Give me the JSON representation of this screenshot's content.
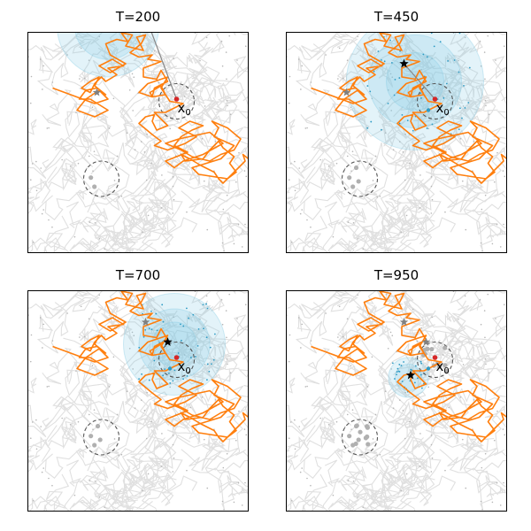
{
  "panels": [
    {
      "title": "T=200",
      "x0_label": "x",
      "x0_sub": "0"
    },
    {
      "title": "T=450",
      "x0_label": "x",
      "x0_sub": "0"
    },
    {
      "title": "T=700",
      "x0_label": "x",
      "x0_sub": "0"
    },
    {
      "title": "T=950",
      "x0_label": "x",
      "x0_sub": "0"
    }
  ],
  "colors": {
    "trajectory": "#ff7f0e",
    "background_paths": "#e0e0e0",
    "belief": "#7ec8e3",
    "target": "#d62728",
    "estimate_star": "#000000",
    "prior_star": "#808080",
    "circle": "#555555"
  },
  "chart_data": {
    "type": "line",
    "xlim": [
      0,
      1
    ],
    "ylim": [
      0,
      1
    ],
    "grid": false,
    "axis_ticks": false,
    "trajectory": {
      "x": [
        0.11,
        0.3,
        0.36,
        0.32,
        0.26,
        0.22,
        0.3,
        0.36,
        0.28,
        0.23,
        0.26,
        0.31,
        0.35,
        0.3,
        0.32,
        0.28,
        0.24,
        0.28,
        0.3,
        0.33,
        0.35,
        0.4,
        0.36,
        0.43,
        0.38,
        0.32,
        0.37,
        0.44,
        0.37,
        0.35,
        0.4,
        0.45,
        0.42,
        0.47,
        0.44,
        0.52,
        0.49,
        0.53,
        0.51,
        0.46,
        0.5,
        0.56,
        0.54,
        0.6,
        0.52,
        0.52,
        0.58,
        0.6,
        0.63,
        0.57,
        0.56,
        0.55,
        0.6,
        0.62,
        0.56,
        0.5,
        0.54,
        0.63,
        0.6,
        0.64,
        0.7,
        0.62,
        0.57,
        0.6,
        0.63,
        0.58,
        0.56,
        0.57,
        0.53,
        0.5,
        0.56,
        0.6,
        0.57,
        0.63,
        0.71,
        0.76,
        0.68,
        0.73,
        0.79,
        0.74,
        0.69,
        0.66,
        0.72,
        0.67,
        0.62,
        0.66,
        0.7,
        0.79,
        0.88,
        0.82,
        0.68,
        0.62,
        0.69,
        0.74,
        0.82,
        0.87,
        0.93,
        0.96,
        0.9,
        0.83,
        0.86,
        0.84,
        0.93,
        0.9,
        0.87,
        0.74,
        0.77,
        0.9,
        0.94,
        0.91,
        0.93,
        0.88,
        0.86,
        0.82,
        0.79,
        0.71,
        0.69,
        0.73,
        0.78,
        0.84,
        0.86,
        0.88,
        0.92,
        0.95,
        0.98,
        0.97,
        1.02
      ],
      "y": [
        0.75,
        0.68,
        0.7,
        0.74,
        0.7,
        0.65,
        0.62,
        0.65,
        0.7,
        0.7,
        0.74,
        0.75,
        0.72,
        0.76,
        0.8,
        0.78,
        0.75,
        0.73,
        0.77,
        0.8,
        0.78,
        0.81,
        0.84,
        0.85,
        0.88,
        0.85,
        0.82,
        0.86,
        0.9,
        0.95,
        0.97,
        0.96,
        1.0,
        0.99,
        0.94,
        0.92,
        0.98,
        0.99,
        0.95,
        0.91,
        0.89,
        0.9,
        0.88,
        0.87,
        0.84,
        0.8,
        0.79,
        0.83,
        0.78,
        0.75,
        0.71,
        0.73,
        0.76,
        0.72,
        0.71,
        0.73,
        0.77,
        0.8,
        0.75,
        0.69,
        0.68,
        0.64,
        0.64,
        0.61,
        0.58,
        0.56,
        0.6,
        0.63,
        0.62,
        0.59,
        0.54,
        0.51,
        0.49,
        0.47,
        0.5,
        0.53,
        0.57,
        0.6,
        0.58,
        0.56,
        0.53,
        0.49,
        0.46,
        0.44,
        0.42,
        0.39,
        0.42,
        0.45,
        0.5,
        0.55,
        0.52,
        0.5,
        0.47,
        0.44,
        0.42,
        0.45,
        0.47,
        0.52,
        0.57,
        0.6,
        0.57,
        0.53,
        0.49,
        0.46,
        0.43,
        0.39,
        0.36,
        0.34,
        0.37,
        0.41,
        0.44,
        0.48,
        0.51,
        0.47,
        0.43,
        0.42,
        0.45,
        0.43,
        0.4,
        0.37,
        0.34,
        0.32,
        0.36,
        0.39,
        0.42,
        0.45,
        0.41
      ]
    },
    "x0": [
      0.67,
      0.7
    ],
    "circles": [
      {
        "center": [
          0.67,
          0.69
        ],
        "radius": 0.08
      },
      {
        "center": [
          0.33,
          0.34
        ],
        "radius": 0.08
      }
    ],
    "frames": [
      {
        "T": 200,
        "estimate": null,
        "belief_center": [
          0.36,
          1.03
        ],
        "belief_radii": [
          0.23,
          0.15
        ],
        "prior_marker": [
          0.31,
          0.73
        ],
        "link_from": [
          0.55,
          1.02
        ]
      },
      {
        "T": 450,
        "estimate": [
          0.53,
          0.86
        ],
        "belief_center": [
          0.58,
          0.78
        ],
        "belief_radii": [
          0.31,
          0.21,
          0.13
        ],
        "prior_marker": [
          0.27,
          0.73
        ],
        "link_from": [
          0.53,
          0.86
        ]
      },
      {
        "T": 700,
        "estimate": [
          0.63,
          0.77
        ],
        "belief_center": [
          0.66,
          0.76
        ],
        "belief_radii": [
          0.23,
          0.16,
          0.1
        ],
        "prior_marker": [
          0.53,
          0.86
        ],
        "link_from": null
      },
      {
        "T": 950,
        "estimate": [
          0.56,
          0.62
        ],
        "belief_center": [
          0.55,
          0.61
        ],
        "belief_radii": [
          0.09,
          0.06
        ],
        "prior_marker": [
          0.53,
          0.86
        ],
        "second_prior": [
          0.63,
          0.77
        ],
        "link_from": null
      }
    ]
  }
}
